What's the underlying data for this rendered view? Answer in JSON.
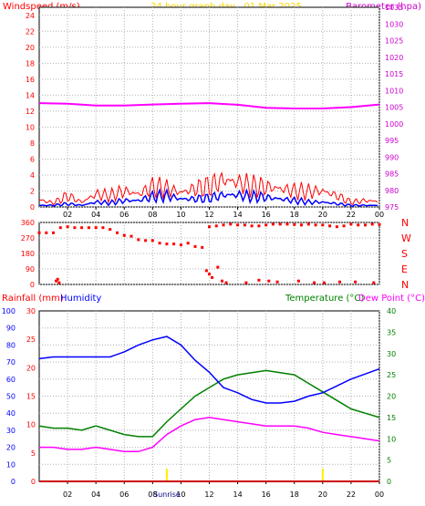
{
  "chart_data": [
    {
      "type": "line",
      "title": "24 hour graph day , 01 Mar 2025",
      "ylabel_left": "Windspeed (m/s)",
      "ylabel_right": "Barometer (hpa)",
      "x_ticks": [
        "02",
        "04",
        "06",
        "08",
        "10",
        "12",
        "14",
        "16",
        "18",
        "20",
        "22",
        "00"
      ],
      "ylim_left": [
        0,
        25
      ],
      "y_ticks_left": [
        "0",
        "2",
        "4",
        "6",
        "8",
        "10",
        "12",
        "14",
        "16",
        "18",
        "20",
        "22",
        "24"
      ],
      "ylim_right": [
        975,
        1035
      ],
      "y_ticks_right": [
        "975",
        "980",
        "985",
        "990",
        "995",
        "1000",
        "1005",
        "1010",
        "1015",
        "1020",
        "1025",
        "1030",
        "1035"
      ],
      "grid": true,
      "colors": {
        "gust": "#ff0000",
        "avg": "#0000ff",
        "barometer": "#ff00ff",
        "title": "#ffd700",
        "left_label": "#ff0000",
        "right_label": "#cc00cc",
        "right_ticks": "#cc00cc"
      },
      "series": [
        {
          "key": "gust",
          "axis": "left",
          "x": [
            0,
            1,
            2,
            3,
            4,
            5,
            6,
            7,
            8,
            9,
            10,
            11,
            12,
            13,
            14,
            15,
            16,
            17,
            18,
            19,
            20,
            21,
            22,
            23,
            24
          ],
          "values": [
            0.9,
            0.5,
            1.4,
            0.6,
            1.6,
            1.4,
            2.0,
            1.6,
            2.5,
            2.3,
            1.8,
            2.3,
            2.6,
            3.4,
            3.1,
            2.6,
            2.5,
            2.3,
            2.0,
            1.9,
            2.0,
            1.4,
            0.6,
            0.8,
            0.7
          ]
        },
        {
          "key": "avg",
          "axis": "left",
          "x": [
            0,
            1,
            2,
            3,
            4,
            5,
            6,
            7,
            8,
            9,
            10,
            11,
            12,
            13,
            14,
            15,
            16,
            17,
            18,
            19,
            20,
            21,
            22,
            23,
            24
          ],
          "values": [
            0.2,
            0.2,
            0.4,
            0.2,
            0.6,
            0.5,
            0.8,
            0.8,
            1.3,
            1.4,
            1.0,
            1.0,
            1.1,
            1.5,
            1.5,
            1.3,
            1.2,
            1.0,
            0.8,
            0.6,
            0.6,
            0.4,
            0.2,
            0.2,
            0.2
          ]
        },
        {
          "key": "barometer",
          "axis": "right",
          "x": [
            0,
            2,
            4,
            6,
            8,
            10,
            12,
            14,
            16,
            18,
            20,
            22,
            24
          ],
          "values": [
            1006.2,
            1006.0,
            1005.5,
            1005.5,
            1005.8,
            1006.0,
            1006.2,
            1005.7,
            1004.8,
            1004.6,
            1004.6,
            1005.0,
            1005.8
          ]
        }
      ]
    },
    {
      "type": "scatter",
      "x_ticks": [
        "02",
        "04",
        "06",
        "08",
        "10",
        "12",
        "14",
        "16",
        "18",
        "20",
        "22",
        "00"
      ],
      "ylim": [
        0,
        360
      ],
      "y_ticks": [
        "0",
        "90",
        "180",
        "270",
        "360"
      ],
      "right_labels": [
        "N",
        "W",
        "S",
        "E",
        "N"
      ],
      "colors": {
        "points": "#ff0000",
        "right_labels": "#ff0000"
      },
      "x": [
        0.0,
        0.5,
        1.0,
        1.5,
        2.0,
        2.5,
        3.0,
        3.5,
        4.0,
        4.5,
        5.0,
        5.5,
        6.0,
        6.5,
        7.0,
        7.5,
        8.0,
        8.5,
        9.0,
        9.5,
        10.0,
        10.5,
        11.0,
        11.5,
        12.0,
        12.5,
        13.0,
        13.5,
        14.0,
        14.5,
        15.0,
        15.5,
        16.0,
        16.5,
        17.0,
        17.5,
        18.0,
        18.5,
        19.0,
        19.5,
        20.0,
        20.5,
        21.0,
        21.5,
        22.0,
        22.5,
        23.0,
        23.5,
        24.0,
        1.2,
        1.3,
        1.4,
        11.8,
        12.0,
        12.2,
        12.6,
        12.9,
        13.2,
        14.6,
        15.5,
        16.2,
        16.8,
        18.3,
        19.4,
        20.1,
        21.2,
        22.3,
        23.6
      ],
      "values": [
        300,
        300,
        300,
        330,
        335,
        330,
        330,
        330,
        330,
        330,
        320,
        300,
        285,
        280,
        260,
        255,
        255,
        240,
        235,
        235,
        230,
        240,
        220,
        215,
        335,
        340,
        345,
        350,
        345,
        345,
        340,
        340,
        345,
        350,
        350,
        350,
        348,
        345,
        350,
        345,
        345,
        340,
        335,
        340,
        350,
        345,
        345,
        350,
        348,
        20,
        30,
        10,
        80,
        60,
        40,
        100,
        20,
        10,
        10,
        25,
        20,
        15,
        20,
        10,
        10,
        15,
        15,
        10
      ]
    },
    {
      "type": "line",
      "ylabel_left_1": "Rainfall (mm)",
      "ylabel_left_2": "Humidity",
      "ylabel_right_1": "Temperature (°C)",
      "ylabel_right_2": "Dew Point (°C)",
      "x_ticks": [
        "02",
        "04",
        "06",
        "08",
        "10",
        "12",
        "14",
        "16",
        "18",
        "20",
        "22",
        "00"
      ],
      "x_extra_labels": [
        "Sunrise"
      ],
      "y_ticks_humidity": [
        "0",
        "10",
        "20",
        "30",
        "40",
        "50",
        "60",
        "70",
        "80",
        "90",
        "100"
      ],
      "ylim_humidity": [
        0,
        100
      ],
      "y_ticks_rain": [
        "0",
        "5",
        "10",
        "15",
        "20",
        "25",
        "30"
      ],
      "ylim_rain": [
        0,
        30
      ],
      "y_ticks_temp": [
        "0",
        "5",
        "10",
        "15",
        "20",
        "25",
        "30",
        "35",
        "40"
      ],
      "ylim_temp": [
        0,
        40
      ],
      "sunrise_hour": 9.0,
      "sunset_hour": 20.0,
      "grid": true,
      "colors": {
        "rain_label": "#ff0000",
        "humidity": "#0000ff",
        "temperature": "#008000",
        "dewpoint": "#ff00ff",
        "dew_label": "#ff00ff",
        "rain_line": "#cc0000",
        "sun_marker": "#ffee00"
      },
      "series": [
        {
          "key": "humidity",
          "axis": "humidity",
          "x": [
            0,
            1,
            2,
            3,
            4,
            5,
            6,
            7,
            8,
            9,
            10,
            11,
            12,
            13,
            14,
            15,
            16,
            17,
            18,
            19,
            20,
            21,
            22,
            23,
            24
          ],
          "values": [
            72,
            73,
            73,
            73,
            73,
            73,
            76,
            80,
            83,
            85,
            80,
            71,
            64,
            55,
            52,
            48,
            46,
            46,
            47,
            50,
            52,
            56,
            60,
            63,
            66
          ]
        },
        {
          "key": "temperature",
          "axis": "temp",
          "x": [
            0,
            1,
            2,
            3,
            4,
            5,
            6,
            7,
            8,
            9,
            10,
            11,
            12,
            13,
            14,
            15,
            16,
            17,
            18,
            19,
            20,
            21,
            22,
            23,
            24
          ],
          "values": [
            13,
            12.5,
            12.5,
            12,
            13,
            12,
            11,
            10.5,
            10.5,
            14,
            17,
            20,
            22,
            24,
            25,
            25.5,
            26,
            25.5,
            25,
            23,
            21,
            19,
            17,
            16,
            15
          ]
        },
        {
          "key": "dewpoint",
          "axis": "temp",
          "x": [
            0,
            1,
            2,
            3,
            4,
            5,
            6,
            7,
            8,
            9,
            10,
            11,
            12,
            13,
            14,
            15,
            16,
            17,
            18,
            19,
            20,
            21,
            22,
            23,
            24
          ],
          "values": [
            8,
            8,
            7.5,
            7.5,
            8,
            7.5,
            7,
            7,
            8,
            11,
            13,
            14.5,
            15,
            14.5,
            14,
            13.5,
            13,
            13,
            13,
            12.5,
            11.5,
            11,
            10.5,
            10,
            9.5
          ]
        },
        {
          "key": "rainfall",
          "axis": "rain",
          "x": [
            0,
            24
          ],
          "values": [
            0,
            0
          ]
        }
      ]
    }
  ]
}
